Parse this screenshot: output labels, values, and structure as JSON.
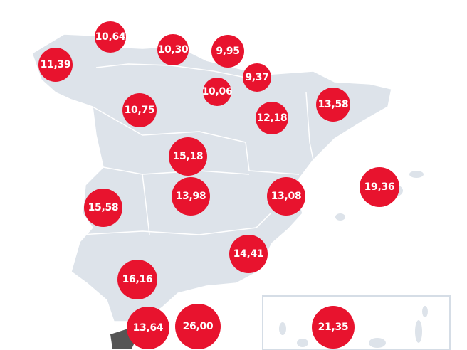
{
  "colors": {
    "land": "#dde3ea",
    "border": "#ffffff",
    "bubble": "#e8132e",
    "inset_frame": "#d5dde6",
    "dark_land": "#555555"
  },
  "values": [
    "11,39",
    "10,64",
    "10,30",
    "9,95",
    "9,37",
    "10,06",
    "12,18",
    "13,58",
    "10,75",
    "15,18",
    "13,98",
    "13,08",
    "19,36",
    "15,58",
    "14,41",
    "16,16",
    "13,64",
    "26,00",
    "21,35"
  ]
}
